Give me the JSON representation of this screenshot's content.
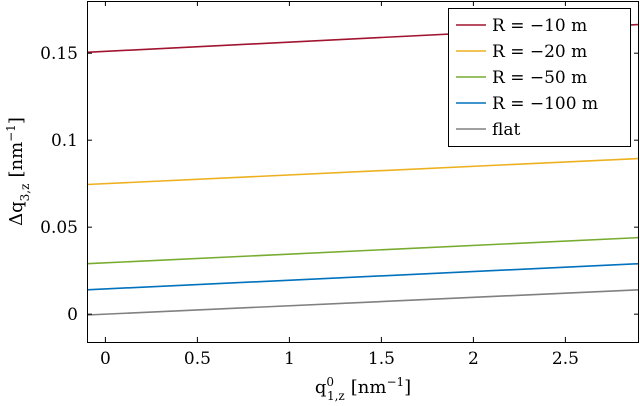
{
  "chart_data": {
    "type": "line",
    "xlabel": "q",
    "xlabel_sup": "0",
    "xlabel_sub": "1,z",
    "xlabel_unit": "[nm",
    "xlabel_unit_sup": "−1",
    "xlabel_unit_end": "]",
    "ylabel": "Δq",
    "ylabel_sub": "3,z",
    "ylabel_unit": "[nm",
    "ylabel_unit_sup": "−1",
    "ylabel_unit_end": "]",
    "xlim": [
      -0.1,
      2.9
    ],
    "ylim": [
      -0.016,
      0.18
    ],
    "xticks": [
      0,
      0.5,
      1,
      1.5,
      2,
      2.5
    ],
    "xtick_labels": [
      "0",
      "0.5",
      "1",
      "1.5",
      "2",
      "2.5"
    ],
    "yticks": [
      0,
      0.05,
      0.1,
      0.15
    ],
    "ytick_labels": [
      "0",
      "0.05",
      "0.1",
      "0.15"
    ],
    "grid": false,
    "legend_position": "top-right",
    "series": [
      {
        "name": "R = −10 m",
        "color": "#a2142f",
        "x": [
          -0.1,
          2.9
        ],
        "y": [
          0.1505,
          0.1665
        ]
      },
      {
        "name": "R = −20 m",
        "color": "#edb120",
        "x": [
          -0.1,
          2.9
        ],
        "y": [
          0.0745,
          0.0895
        ]
      },
      {
        "name": "R = −50 m",
        "color": "#77ac30",
        "x": [
          -0.1,
          2.9
        ],
        "y": [
          0.029,
          0.044
        ]
      },
      {
        "name": "R = −100 m",
        "color": "#0072bd",
        "x": [
          -0.1,
          2.9
        ],
        "y": [
          0.014,
          0.029
        ]
      },
      {
        "name": "flat",
        "color": "#808080",
        "x": [
          -0.1,
          2.9
        ],
        "y": [
          -0.0005,
          0.014
        ]
      }
    ]
  }
}
